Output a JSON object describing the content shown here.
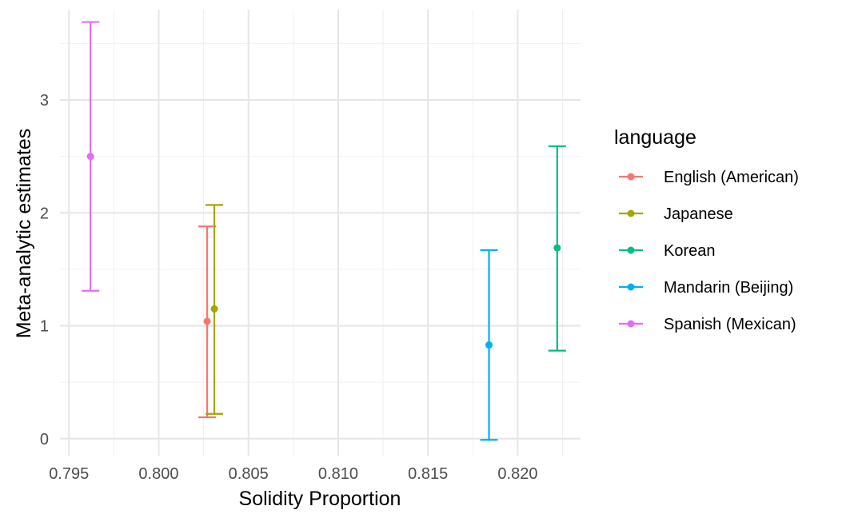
{
  "chart_data": {
    "type": "errorbar",
    "xlabel": "Solidity Proportion",
    "ylabel": "Meta-analytic estimates",
    "xlim": [
      0.7945,
      0.8235
    ],
    "ylim": [
      -0.15,
      3.8
    ],
    "x_ticks": [
      0.795,
      0.8,
      0.805,
      0.81,
      0.815,
      0.82
    ],
    "x_tick_labels": [
      "0.795",
      "0.800",
      "0.805",
      "0.810",
      "0.815",
      "0.820"
    ],
    "y_ticks": [
      0,
      1,
      2,
      3
    ],
    "y_tick_labels": [
      "0",
      "1",
      "2",
      "3"
    ],
    "grid": true,
    "legend": {
      "title": "language",
      "position": "right"
    },
    "series": [
      {
        "name": "English (American)",
        "color": "#F8766D",
        "x": 0.8027,
        "y": 1.04,
        "ymin": 0.19,
        "ymax": 1.88
      },
      {
        "name": "Japanese",
        "color": "#A3A500",
        "x": 0.8031,
        "y": 1.15,
        "ymin": 0.22,
        "ymax": 2.07
      },
      {
        "name": "Korean",
        "color": "#00BF7D",
        "x": 0.8222,
        "y": 1.69,
        "ymin": 0.78,
        "ymax": 2.59
      },
      {
        "name": "Mandarin (Beijing)",
        "color": "#00B0F6",
        "x": 0.8184,
        "y": 0.83,
        "ymin": -0.01,
        "ymax": 1.67
      },
      {
        "name": "Spanish (Mexican)",
        "color": "#E76BF3",
        "x": 0.7962,
        "y": 2.5,
        "ymin": 1.31,
        "ymax": 3.69
      }
    ]
  }
}
